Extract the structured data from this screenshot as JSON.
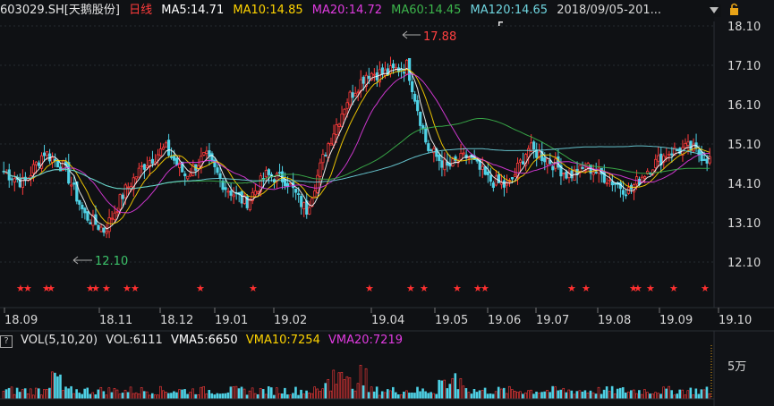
{
  "header": {
    "symbol": "603029.SH",
    "name": "[天鹅股份]",
    "period": "日线",
    "ma5": "MA5:14.71",
    "ma10": "MA10:14.85",
    "ma20": "MA20:14.72",
    "ma60": "MA60:14.45",
    "ma120": "MA120:14.65",
    "range": "2018/09/05-201...",
    "colors": {
      "ma5": "#ffffff",
      "ma10": "#ffd400",
      "ma20": "#e03be0",
      "ma60": "#3cb44b",
      "ma120": "#6fd6e0",
      "period": "#ff3b3b"
    }
  },
  "volume_header": {
    "help_icon": "?",
    "label": "VOL(5,10,20)",
    "vol": "VOL:6111",
    "vma5": "VMA5:6650",
    "vma10": "VMA10:7254",
    "vma20": "VMA20:7219"
  },
  "icons": {
    "dropdown": "triangle-down-icon",
    "lock": "lock-icon",
    "flag": "corner-flag-icon"
  },
  "chart_data": {
    "type": "candlestick",
    "price_axis": {
      "ticks": [
        "18.10",
        "17.10",
        "16.10",
        "15.10",
        "14.10",
        "13.10",
        "12.10"
      ],
      "ylim": [
        11.8,
        18.4
      ]
    },
    "time_axis": {
      "ticks": [
        "18.09",
        "18.11",
        "18.12",
        "19.01",
        "19.02",
        "19.04",
        "19.05",
        "19.06",
        "19.07",
        "19.08",
        "19.09",
        "19.10"
      ]
    },
    "annotations": [
      {
        "label": "17.88",
        "type": "max"
      },
      {
        "label": "12.10",
        "type": "min"
      }
    ],
    "volume_axis": {
      "label": "5万"
    },
    "approx_close_path": [
      14.4,
      14.1,
      14.9,
      14.5,
      13.3,
      12.9,
      13.9,
      14.6,
      15.0,
      14.3,
      14.8,
      14.0,
      13.6,
      14.3,
      14.2,
      13.4,
      15.0,
      16.2,
      16.9,
      16.9,
      17.1,
      15.0,
      14.5,
      14.8,
      14.2,
      14.0,
      15.0,
      14.7,
      14.3,
      14.5,
      14.2,
      13.9,
      14.5,
      14.9,
      15.0,
      14.7
    ]
  }
}
